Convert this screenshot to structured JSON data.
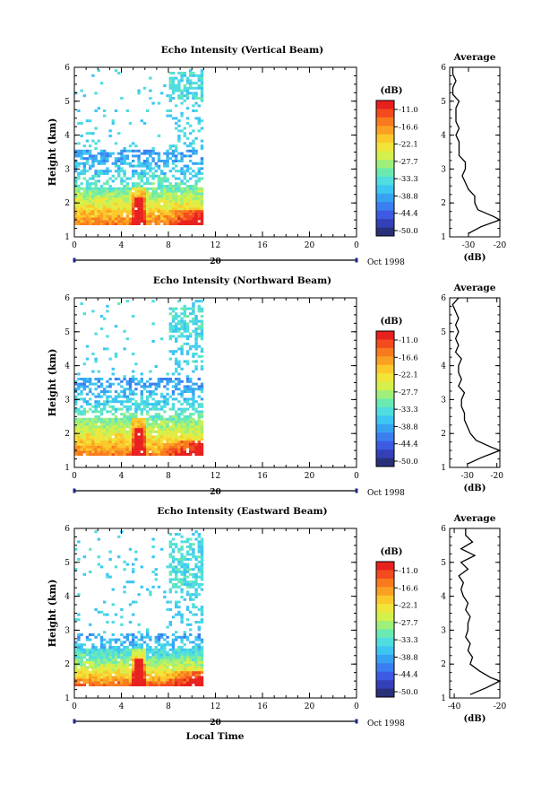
{
  "figure": {
    "footer_label": "Local Time",
    "date_label": "Oct 1998",
    "day_label": "20"
  },
  "colorbar": {
    "unit": "(dB)",
    "labels": [
      "-11.0",
      "-16.6",
      "-22.1",
      "-27.7",
      "-33.3",
      "-38.8",
      "-44.4",
      "-50.0"
    ],
    "colors": [
      "#e8201e",
      "#f34a1e",
      "#f97a1e",
      "#fca021",
      "#fbc92a",
      "#f1e53a",
      "#d4f04a",
      "#9ff07a",
      "#6aeab0",
      "#4fdde0",
      "#3ec6f2",
      "#38a2f2",
      "#3a7ef0",
      "#3d5be2",
      "#3440b8",
      "#28307a"
    ]
  },
  "chart_data": [
    {
      "type": "heatmap",
      "title": "Echo Intensity (Vertical Beam)",
      "ylabel": "Height (km)",
      "xlim": [
        0,
        24
      ],
      "ylim": [
        1,
        6
      ],
      "xticks": [
        "0",
        "4",
        "8",
        "12",
        "16",
        "20",
        "0"
      ],
      "yticks": [
        "1",
        "2",
        "3",
        "4",
        "5",
        "6"
      ],
      "data_end_hour": 11,
      "features": {
        "dense_top_km": 3.5,
        "upper_patch_km": [
          5.0,
          5.8
        ],
        "max_burst_hour": 5.5
      },
      "average": {
        "title": "Average",
        "xlabel": "(dB)",
        "xticks": [
          "-30",
          "-20"
        ],
        "xlim": [
          -36,
          -20
        ],
        "height_km": [
          1.1,
          1.3,
          1.5,
          1.6,
          1.8,
          2.0,
          2.2,
          2.4,
          2.6,
          2.8,
          3.0,
          3.2,
          3.4,
          3.6,
          3.8,
          4.0,
          4.2,
          4.4,
          4.6,
          4.8,
          5.0,
          5.2,
          5.4,
          5.6,
          5.8,
          6.0
        ],
        "db": [
          -30,
          -26,
          -20,
          -22,
          -27,
          -28,
          -28,
          -30,
          -31,
          -32,
          -31,
          -31,
          -33,
          -33,
          -33,
          -34,
          -33,
          -34,
          -34,
          -34,
          -33,
          -35,
          -35,
          -34,
          -35,
          -35
        ]
      }
    },
    {
      "type": "heatmap",
      "title": "Echo Intensity (Northward Beam)",
      "ylabel": "Height (km)",
      "xlim": [
        0,
        24
      ],
      "ylim": [
        1,
        6
      ],
      "xticks": [
        "0",
        "4",
        "8",
        "12",
        "16",
        "20",
        "0"
      ],
      "yticks": [
        "1",
        "2",
        "3",
        "4",
        "5",
        "6"
      ],
      "data_end_hour": 11,
      "features": {
        "dense_top_km": 3.6,
        "upper_patch_km": [
          4.8,
          5.7
        ],
        "max_burst_hour": 5.5
      },
      "average": {
        "title": "Average",
        "xlabel": "(dB)",
        "xticks": [
          "-30",
          "-20"
        ],
        "xlim": [
          -36,
          -19
        ],
        "height_km": [
          1.1,
          1.3,
          1.5,
          1.6,
          1.8,
          2.0,
          2.2,
          2.4,
          2.6,
          2.8,
          3.0,
          3.2,
          3.4,
          3.6,
          3.8,
          4.0,
          4.2,
          4.4,
          4.6,
          4.8,
          5.0,
          5.2,
          5.4,
          5.6,
          5.8,
          6.0
        ],
        "db": [
          -30,
          -25,
          -19,
          -22,
          -27,
          -29,
          -30,
          -31,
          -31,
          -32,
          -32,
          -31,
          -33,
          -32,
          -33,
          -33,
          -32,
          -34,
          -33,
          -34,
          -33,
          -34,
          -33,
          -34,
          -35,
          -33
        ]
      }
    },
    {
      "type": "heatmap",
      "title": "Echo Intensity (Eastward Beam)",
      "ylabel": "Height (km)",
      "xlim": [
        0,
        24
      ],
      "ylim": [
        1,
        6
      ],
      "xticks": [
        "0",
        "4",
        "8",
        "12",
        "16",
        "20",
        "0"
      ],
      "yticks": [
        "1",
        "2",
        "3",
        "4",
        "5",
        "6"
      ],
      "data_end_hour": 11,
      "features": {
        "dense_top_km": 2.9,
        "upper_patch_km": [
          4.2,
          5.6
        ],
        "max_burst_hour": 5.5
      },
      "average": {
        "title": "Average",
        "xlabel": "(dB)",
        "xticks": [
          "-40",
          "-20"
        ],
        "xlim": [
          -42,
          -20
        ],
        "height_km": [
          1.1,
          1.3,
          1.5,
          1.6,
          1.8,
          2.0,
          2.2,
          2.4,
          2.6,
          2.8,
          3.0,
          3.2,
          3.4,
          3.6,
          3.8,
          4.0,
          4.2,
          4.4,
          4.6,
          4.8,
          5.0,
          5.2,
          5.4,
          5.6,
          5.8,
          6.0
        ],
        "db": [
          -33,
          -26,
          -20,
          -24,
          -29,
          -33,
          -32,
          -34,
          -33,
          -35,
          -34,
          -34,
          -33,
          -35,
          -34,
          -36,
          -37,
          -36,
          -38,
          -34,
          -37,
          -31,
          -37,
          -32,
          -35,
          -35
        ]
      }
    }
  ]
}
